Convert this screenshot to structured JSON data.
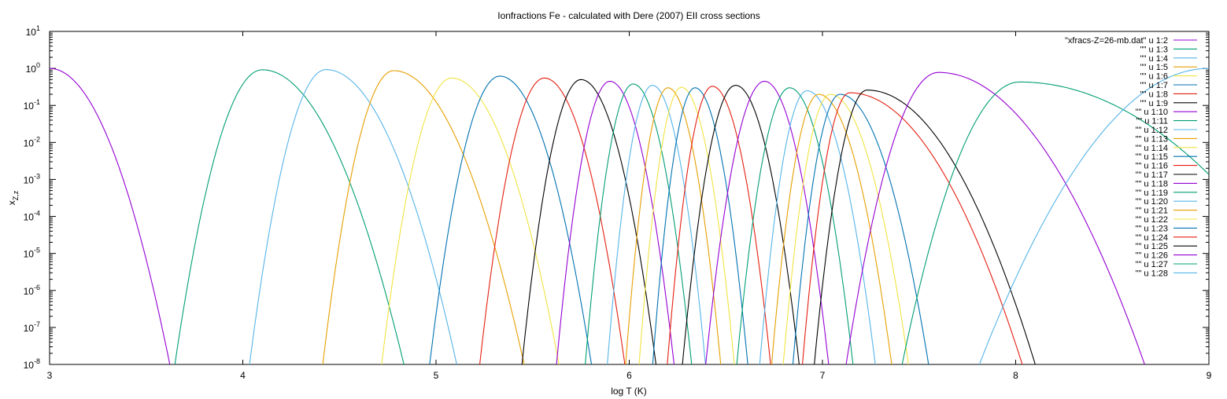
{
  "chart_data": {
    "type": "line",
    "title": "Ionfractions Fe - calculated with Dere (2007) EII cross sections",
    "xlabel": "log T (K)",
    "ylabel_base": "x",
    "ylabel_sub": "Z,z",
    "xlim": [
      3,
      9
    ],
    "ylim_log10": [
      -8,
      1
    ],
    "yscale": "log",
    "grid": false,
    "legend_placement": "top-right",
    "x_ticks": [
      "3",
      "4",
      "5",
      "6",
      "7",
      "8",
      "9"
    ],
    "y_ticks": [
      {
        "base": "10",
        "exp": "1"
      },
      {
        "base": "10",
        "exp": "0"
      },
      {
        "base": "10",
        "exp": "-1"
      },
      {
        "base": "10",
        "exp": "-2"
      },
      {
        "base": "10",
        "exp": "-3"
      },
      {
        "base": "10",
        "exp": "-4"
      },
      {
        "base": "10",
        "exp": "-5"
      },
      {
        "base": "10",
        "exp": "-6"
      },
      {
        "base": "10",
        "exp": "-7"
      },
      {
        "base": "10",
        "exp": "-8"
      }
    ],
    "series": [
      {
        "name": "\"xfracs-Z=26-mb.dat\" u 1:2",
        "color": "#9400d3",
        "peak_logT": 3.0,
        "peak_value": 1.0,
        "left_width": 0.3,
        "right_width": 0.22
      },
      {
        "name": "\"\" u 1:3",
        "color": "#009e73",
        "peak_logT": 4.1,
        "peak_value": 0.92,
        "left_width": 0.16,
        "right_width": 0.26
      },
      {
        "name": "\"\" u 1:4",
        "color": "#56b4e9",
        "peak_logT": 4.43,
        "peak_value": 0.93,
        "left_width": 0.14,
        "right_width": 0.24
      },
      {
        "name": "\"\" u 1:5",
        "color": "#e69f00",
        "peak_logT": 4.78,
        "peak_value": 0.87,
        "left_width": 0.13,
        "right_width": 0.24
      },
      {
        "name": "\"\" u 1:6",
        "color": "#f0e442",
        "peak_logT": 5.08,
        "peak_value": 0.55,
        "left_width": 0.13,
        "right_width": 0.2
      },
      {
        "name": "\"\" u 1:7",
        "color": "#0072b2",
        "peak_logT": 5.33,
        "peak_value": 0.62,
        "left_width": 0.13,
        "right_width": 0.17
      },
      {
        "name": "\"\" u 1:8",
        "color": "#e51e10",
        "peak_logT": 5.56,
        "peak_value": 0.55,
        "left_width": 0.12,
        "right_width": 0.15
      },
      {
        "name": "\"\" u 1:9",
        "color": "#000000",
        "peak_logT": 5.75,
        "peak_value": 0.5,
        "left_width": 0.11,
        "right_width": 0.14
      },
      {
        "name": "\"\" u 1:10",
        "color": "#9400d3",
        "peak_logT": 5.9,
        "peak_value": 0.45,
        "left_width": 0.1,
        "right_width": 0.12
      },
      {
        "name": "\"\" u 1:11",
        "color": "#009e73",
        "peak_logT": 6.02,
        "peak_value": 0.38,
        "left_width": 0.09,
        "right_width": 0.11
      },
      {
        "name": "\"\" u 1:12",
        "color": "#56b4e9",
        "peak_logT": 6.12,
        "peak_value": 0.35,
        "left_width": 0.085,
        "right_width": 0.1
      },
      {
        "name": "\"\" u 1:13",
        "color": "#e69f00",
        "peak_logT": 6.2,
        "peak_value": 0.3,
        "left_width": 0.08,
        "right_width": 0.1
      },
      {
        "name": "\"\" u 1:14",
        "color": "#f0e442",
        "peak_logT": 6.27,
        "peak_value": 0.31,
        "left_width": 0.08,
        "right_width": 0.1
      },
      {
        "name": "\"\" u 1:15",
        "color": "#0072b2",
        "peak_logT": 6.34,
        "peak_value": 0.3,
        "left_width": 0.08,
        "right_width": 0.1
      },
      {
        "name": "\"\" u 1:16",
        "color": "#e51e10",
        "peak_logT": 6.43,
        "peak_value": 0.33,
        "left_width": 0.085,
        "right_width": 0.11
      },
      {
        "name": "\"\" u 1:17",
        "color": "#000000",
        "peak_logT": 6.55,
        "peak_value": 0.35,
        "left_width": 0.1,
        "right_width": 0.12
      },
      {
        "name": "\"\" u 1:18",
        "color": "#9400d3",
        "peak_logT": 6.7,
        "peak_value": 0.45,
        "left_width": 0.11,
        "right_width": 0.12
      },
      {
        "name": "\"\" u 1:19",
        "color": "#009e73",
        "peak_logT": 6.83,
        "peak_value": 0.3,
        "left_width": 0.1,
        "right_width": 0.12
      },
      {
        "name": "\"\" u 1:20",
        "color": "#56b4e9",
        "peak_logT": 6.92,
        "peak_value": 0.25,
        "left_width": 0.09,
        "right_width": 0.13
      },
      {
        "name": "\"\" u 1:21",
        "color": "#e69f00",
        "peak_logT": 6.98,
        "peak_value": 0.2,
        "left_width": 0.09,
        "right_width": 0.14
      },
      {
        "name": "\"\" u 1:22",
        "color": "#f0e442",
        "peak_logT": 7.04,
        "peak_value": 0.2,
        "left_width": 0.09,
        "right_width": 0.15
      },
      {
        "name": "\"\" u 1:23",
        "color": "#0072b2",
        "peak_logT": 7.09,
        "peak_value": 0.2,
        "left_width": 0.09,
        "right_width": 0.17
      },
      {
        "name": "\"\" u 1:24",
        "color": "#e51e10",
        "peak_logT": 7.14,
        "peak_value": 0.22,
        "left_width": 0.09,
        "right_width": 0.33
      },
      {
        "name": "\"\" u 1:25",
        "color": "#000000",
        "peak_logT": 7.23,
        "peak_value": 0.26,
        "left_width": 0.1,
        "right_width": 0.32
      },
      {
        "name": "\"\" u 1:26",
        "color": "#9400d3",
        "peak_logT": 7.6,
        "peak_value": 0.78,
        "left_width": 0.17,
        "right_width": 0.38
      },
      {
        "name": "\"\" u 1:27",
        "color": "#009e73",
        "peak_logT": 8.02,
        "peak_value": 0.43,
        "left_width": 0.22,
        "right_width": 0.62
      },
      {
        "name": "\"\" u 1:28",
        "color": "#56b4e9",
        "peak_logT": 9.0,
        "peak_value": 1.0,
        "left_width": 0.42,
        "right_width": 0.5
      }
    ]
  }
}
